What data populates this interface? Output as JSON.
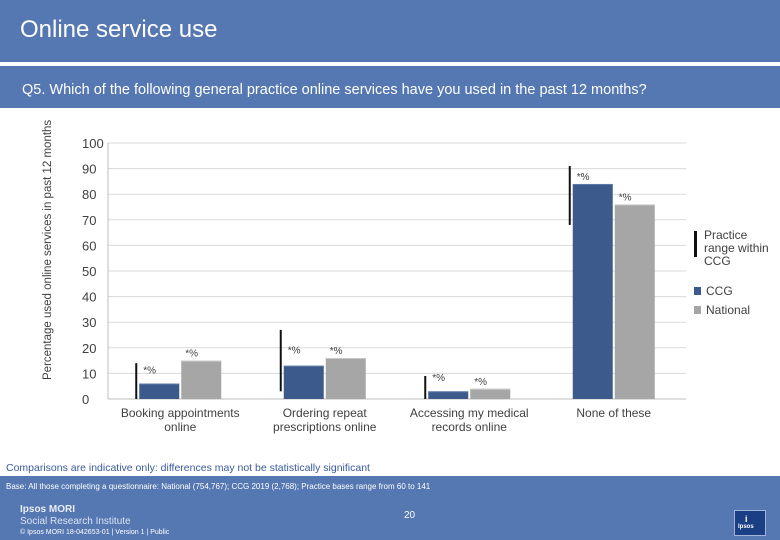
{
  "header": {
    "title": "Online service use"
  },
  "question": "Q5. Which of the following general practice online services have you used in the past 12 months?",
  "chart_data": {
    "type": "bar",
    "ylabel": "Percentage used online services in past 12 months",
    "ylim": [
      0,
      100
    ],
    "yticks": [
      0,
      10,
      20,
      30,
      40,
      50,
      60,
      70,
      80,
      90,
      100
    ],
    "categories": [
      "Booking appointments online",
      "Ordering repeat prescriptions online",
      "Accessing my medical records online",
      "None of these"
    ],
    "series": [
      {
        "name": "CCG",
        "color": "#3d5a8c",
        "values": [
          6,
          13,
          3,
          84
        ],
        "labels": [
          "*%",
          "*%",
          "*%",
          "*%"
        ]
      },
      {
        "name": "National",
        "color": "#a6a6a6",
        "values": [
          15,
          16,
          4,
          76
        ],
        "labels": [
          "*%",
          "*%",
          "*%",
          "*%"
        ]
      }
    ],
    "range": [
      [
        0,
        14
      ],
      [
        3,
        27
      ],
      [
        0,
        9
      ],
      [
        68,
        91
      ]
    ],
    "legend": {
      "range_label": "Practice range within CCG",
      "position": "right"
    }
  },
  "note": "Comparisons are indicative only: differences may not be statistically significant",
  "base": "Base: All those completing a questionnaire: National (754,767); CCG 2019 (2,768); Practice bases range from 60 to 141",
  "footer": {
    "brand_line1": "Ipsos MORI",
    "brand_line2": "Social Research Institute",
    "copyright": "© Ipsos MORI     18-042653-01 | Version 1 | Public",
    "page_number": "20",
    "logo_mark": "i",
    "logo_word": "Ipsos"
  }
}
